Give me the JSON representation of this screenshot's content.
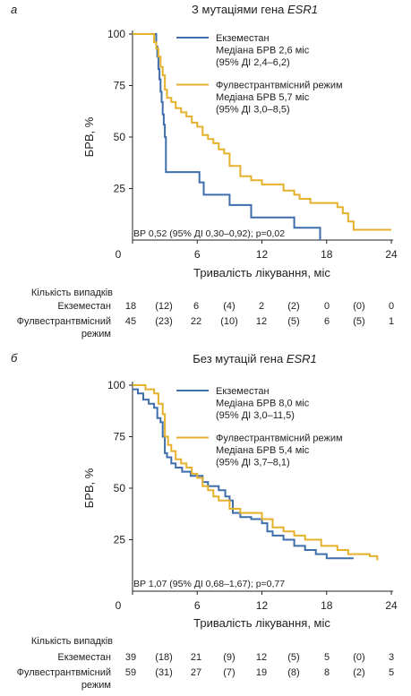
{
  "chart_data": [
    {
      "type": "line",
      "panel_label": "а",
      "title_prefix": "З мутаціями гена ",
      "title_gene": "ESR1",
      "xlabel": "Тривалість лікування, міс",
      "ylabel": "БРВ, %",
      "xlim": [
        0,
        24
      ],
      "ylim": [
        0,
        100
      ],
      "xticks": [
        0,
        6,
        12,
        18,
        24
      ],
      "yticks": [
        25,
        50,
        75,
        100
      ],
      "grid": false,
      "legend_position": "top-right",
      "series": [
        {
          "name": "Екземестан",
          "legend_lines": [
            "Екземестан",
            "Медіана БРВ 2,6 міс",
            "(95% ДІ 2,4–6,2)"
          ],
          "color": "#3e6eab",
          "x": [
            0,
            2.2,
            2.3,
            2.4,
            2.5,
            2.6,
            2.7,
            2.8,
            2.9,
            3.0,
            3.1,
            6.2,
            6.6,
            9.0,
            11.0,
            15.0,
            17.4
          ],
          "y": [
            100,
            94,
            89,
            83,
            78,
            72,
            67,
            61,
            56,
            50,
            33,
            28,
            22,
            17,
            11,
            6,
            0
          ]
        },
        {
          "name": "Фулвестрантвмісний режим",
          "legend_lines": [
            "Фулвестрантвмісний режим",
            "Медіана БРВ 5,7 міс",
            "(95% ДІ 3,0–8,5)"
          ],
          "color": "#e5b02c",
          "x": [
            0,
            2.0,
            2.2,
            2.4,
            2.6,
            2.8,
            3.0,
            3.2,
            3.6,
            4.0,
            4.5,
            5.0,
            5.5,
            6.0,
            6.5,
            7.0,
            7.5,
            8.0,
            8.5,
            9.0,
            10.0,
            11.0,
            12.0,
            14.0,
            15.0,
            15.5,
            16.5,
            19.0,
            19.5,
            20.0,
            20.5,
            24.0
          ],
          "y": [
            100,
            96,
            93,
            89,
            84,
            80,
            73,
            69,
            67,
            64,
            62,
            60,
            57,
            55,
            51,
            49,
            47,
            44,
            42,
            36,
            31,
            29,
            27,
            24,
            22,
            20,
            18,
            16,
            13,
            9,
            5,
            5
          ]
        }
      ],
      "annotation": "ВР 0,52 (95% ДІ 0,30–0,92); p=0,02",
      "risk_table": {
        "header": "Кількість випадків",
        "rows": [
          {
            "label_lines": [
              "Екземестан"
            ],
            "values": [
              "18",
              "(12)",
              "6",
              "(4)",
              "2",
              "(2)",
              "0",
              "(0)",
              "0"
            ]
          },
          {
            "label_lines": [
              "Фулвестрантвмісний",
              "режим"
            ],
            "values": [
              "45",
              "(23)",
              "22",
              "(10)",
              "12",
              "(5)",
              "6",
              "(5)",
              "1"
            ]
          }
        ]
      }
    },
    {
      "type": "line",
      "panel_label": "б",
      "title_prefix": "Без мутацій гена ",
      "title_gene": "ESR1",
      "xlabel": "Тривалість лікування, міс",
      "ylabel": "БРВ, %",
      "xlim": [
        0,
        24
      ],
      "ylim": [
        0,
        100
      ],
      "xticks": [
        0,
        6,
        12,
        18,
        24
      ],
      "yticks": [
        25,
        50,
        75,
        100
      ],
      "grid": false,
      "legend_position": "top-right",
      "series": [
        {
          "name": "Екземестан",
          "legend_lines": [
            "Екземестан",
            "Медіана БРВ 8,0 міс",
            "(95% ДІ 3,0–11,5)"
          ],
          "color": "#3e6eab",
          "x": [
            0,
            0.5,
            1.0,
            1.5,
            2.0,
            2.3,
            2.6,
            2.8,
            3.0,
            3.2,
            3.6,
            4.0,
            4.6,
            5.4,
            6.5,
            7.0,
            8.0,
            8.6,
            9.0,
            9.3,
            10.0,
            11.0,
            12.0,
            12.5,
            13.0,
            14.0,
            15.0,
            16.0,
            17.0,
            18.0,
            20.5
          ],
          "y": [
            98,
            96,
            93,
            91,
            89,
            84,
            82,
            75,
            67,
            65,
            62,
            60,
            58,
            56,
            53,
            51,
            49,
            46,
            44,
            38,
            36,
            35,
            33,
            29,
            27,
            25,
            22,
            20,
            18,
            16,
            16
          ]
        },
        {
          "name": "Фулвестрантвмісний режим",
          "legend_lines": [
            "Фулвестрантвмісний режим",
            "Медіана БРВ 5,4 міс",
            "(95% ДІ 3,7–8,1)"
          ],
          "color": "#e5b02c",
          "x": [
            0,
            1.2,
            2.0,
            2.4,
            2.8,
            3.0,
            3.3,
            3.6,
            4.0,
            4.5,
            5.0,
            5.5,
            6.0,
            6.5,
            7.0,
            7.5,
            8.0,
            9.0,
            10.0,
            12.0,
            13.0,
            14.0,
            15.0,
            16.0,
            17.5,
            19.0,
            20.0,
            22.0,
            22.7
          ],
          "y": [
            100,
            98,
            96,
            91,
            86,
            75,
            71,
            68,
            64,
            62,
            60,
            57,
            55,
            51,
            49,
            46,
            44,
            40,
            38,
            35,
            31,
            29,
            27,
            25,
            22,
            20,
            18,
            17,
            15
          ]
        }
      ],
      "annotation": "ВР 1,07 (95% ДІ 0,68–1,67); p=0,77",
      "risk_table": {
        "header": "Кількість випадків",
        "rows": [
          {
            "label_lines": [
              "Екземестан"
            ],
            "values": [
              "39",
              "(18)",
              "21",
              "(9)",
              "12",
              "(5)",
              "5",
              "(0)",
              "3"
            ]
          },
          {
            "label_lines": [
              "Фулвестрантвмісний",
              "режим"
            ],
            "values": [
              "59",
              "(31)",
              "27",
              "(7)",
              "19",
              "(8)",
              "8",
              "(2)",
              "5"
            ]
          }
        ]
      }
    }
  ]
}
